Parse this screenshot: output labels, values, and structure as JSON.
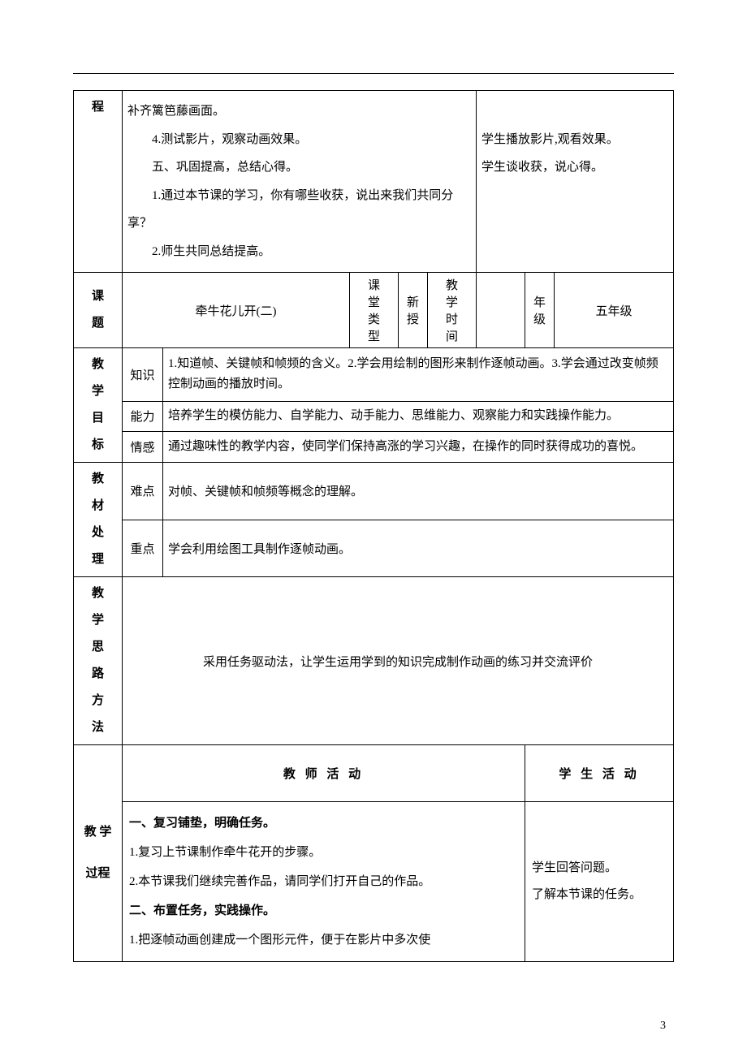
{
  "top": {
    "leftLabel": "程",
    "leftContent": "补齐篱笆藤画面。\n　　4.测试影片，观察动画效果。\n　　五、巩固提高，总结心得。\n　　1.通过本节课的学习，你有哪些收获，说出来我们共同分享？\n　　2.师生共同总结提高。",
    "rightContent": "\n学生播放影片,观看效果。\n学生谈收获，说心得。"
  },
  "header2": {
    "keti_label": "课题",
    "keti_value": "牵牛花儿开(二)",
    "ketype_label": "课堂类型",
    "ketype_value": "新授",
    "time_label": "教学时间",
    "time_value": "",
    "grade_label": "年级",
    "grade_value": "五年级"
  },
  "goals": {
    "label": "教学目标",
    "rows": [
      {
        "k": "知识",
        "v": "1.知道帧、关键帧和帧频的含义。2.学会用绘制的图形来制作逐帧动画。3.学会通过改变帧频控制动画的播放时间。"
      },
      {
        "k": "能力",
        "v": "培养学生的模仿能力、自学能力、动手能力、思维能力、观察能力和实践操作能力。"
      },
      {
        "k": "情感",
        "v": "通过趣味性的教学内容，使同学们保持高涨的学习兴趣，在操作的同时获得成功的喜悦。"
      }
    ]
  },
  "material": {
    "label": "教材处理",
    "rows": [
      {
        "k": "难点",
        "v": "对帧、关键帧和帧频等概念的理解。"
      },
      {
        "k": "重点",
        "v": "学会利用绘图工具制作逐帧动画。"
      }
    ]
  },
  "method": {
    "label": "教学思路方法",
    "value": "采用任务驱动法，让学生运用学到的知识完成制作动画的练习并交流评价"
  },
  "activities": {
    "teacher_label": "教 师 活 动",
    "student_label": "学 生 活 动"
  },
  "process": {
    "label": "教 学过程",
    "teacher": "一、复习铺垫，明确任务。|1.复习上节课制作牵牛花开的步骤。|2.本节课我们继续完善作品，请同学们打开自己的作品。|二、布置任务，实践操作。|1.把逐帧动画创建成一个图形元件，便于在影片中多次使",
    "student": "学生回答问题。\n了解本节课的任务。"
  },
  "pageNumber": "3"
}
